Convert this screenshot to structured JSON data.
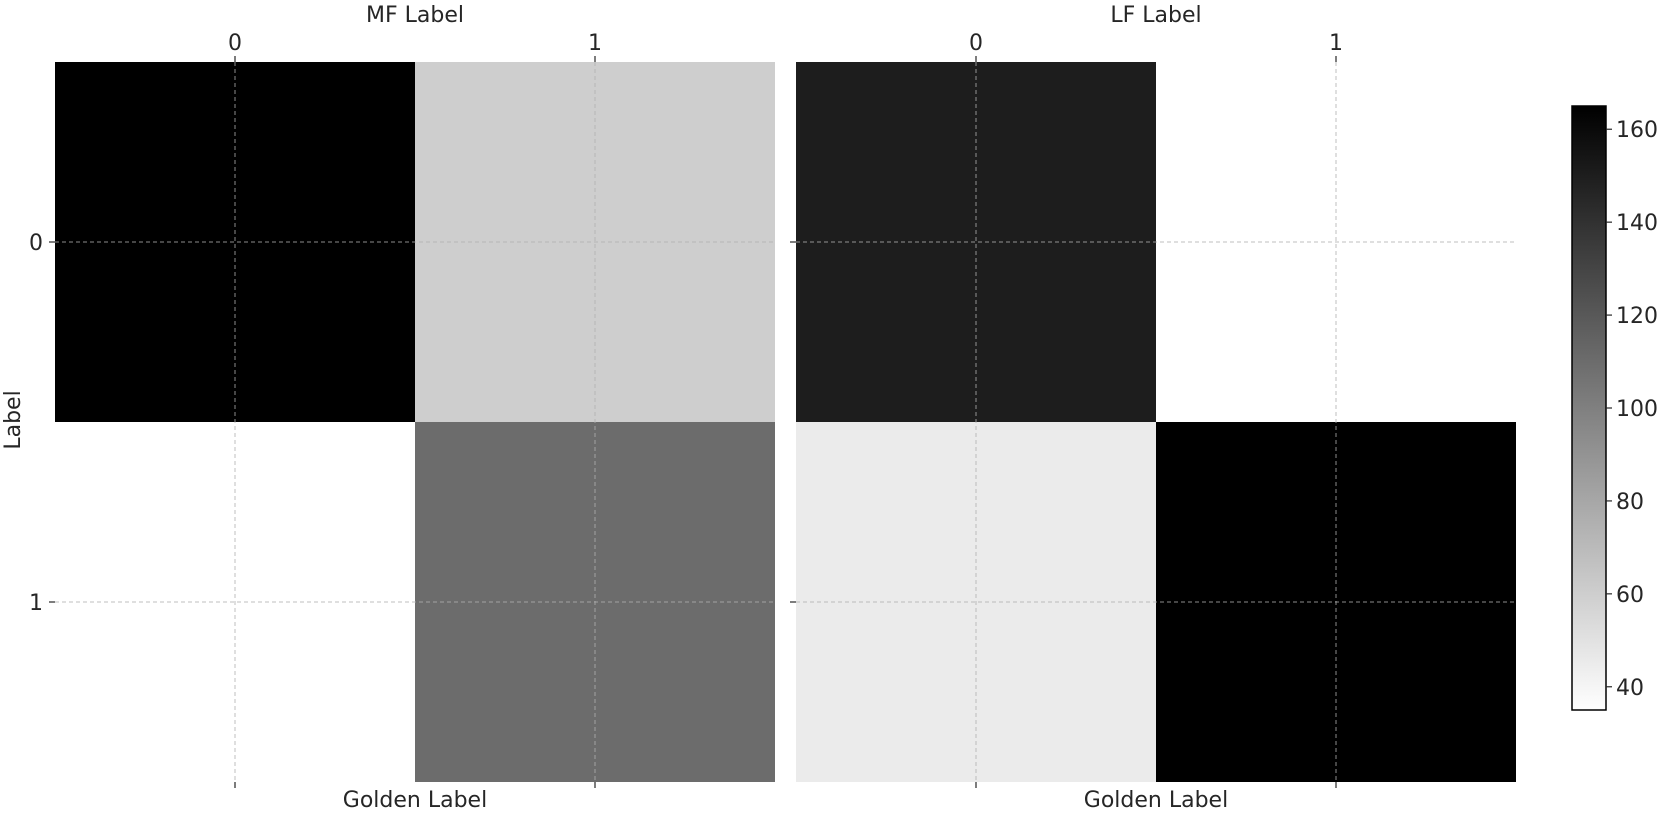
{
  "chart_data": {
    "type": "heatmap",
    "colormap": "Greys",
    "grid": true,
    "color_range": [
      35,
      165
    ],
    "colorbar": {
      "ticks": [
        160,
        140,
        120,
        100,
        80,
        60,
        40
      ],
      "tick_labels": [
        "160",
        "140",
        "120",
        "100",
        "80",
        "60",
        "40"
      ],
      "placement": "right"
    },
    "shared_ylabel": "Label",
    "panels": [
      {
        "name": "mf",
        "xlabel_top": "MF Label",
        "xlabel_bottom": "Golden Label",
        "x_tick_labels": [
          "0",
          "1"
        ],
        "y_tick_labels": [
          "0",
          "1"
        ],
        "values": [
          [
            165,
            60
          ],
          [
            35,
            110
          ]
        ]
      },
      {
        "name": "lf",
        "xlabel_top": "LF Label",
        "xlabel_bottom": "Golden Label",
        "x_tick_labels": [
          "0",
          "1"
        ],
        "y_tick_labels": [
          "0",
          "1"
        ],
        "values": [
          [
            150,
            35
          ],
          [
            45,
            165
          ]
        ]
      }
    ]
  }
}
